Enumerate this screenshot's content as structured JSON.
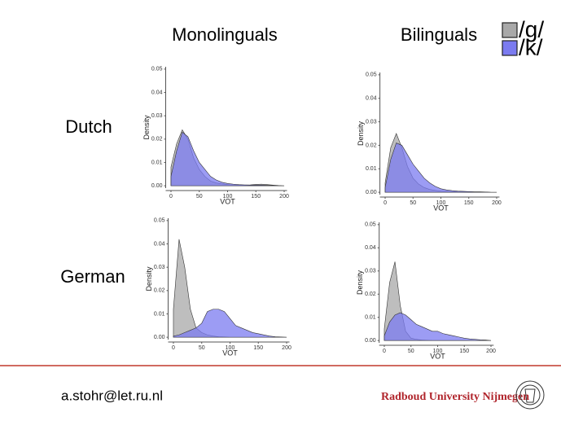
{
  "slide": {
    "columns": [
      "Monolinguals",
      "Bilinguals"
    ],
    "rows": [
      "Dutch",
      "German"
    ],
    "email": "a.stohr@let.ru.nl",
    "institution": "Radboud University Nijmegen"
  },
  "chart_data": [
    {
      "type": "area",
      "xlabel": "VOT",
      "ylabel": "Density",
      "xlim": [
        -5,
        205
      ],
      "ylim": [
        -0.001,
        0.051
      ],
      "xticks": [
        0,
        50,
        100,
        150,
        200
      ],
      "yticks": [
        {
          "value": 0,
          "label": "0.00"
        },
        {
          "value": 0.01,
          "label": "0.01"
        },
        {
          "value": 0.02,
          "label": "0.02"
        },
        {
          "value": 0.03,
          "label": "0.03"
        },
        {
          "value": 0.04,
          "label": "0.04"
        },
        {
          "value": 0.05,
          "label": "0.05"
        }
      ],
      "x": [
        0,
        10,
        20,
        30,
        40,
        50,
        60,
        70,
        80,
        90,
        100,
        110,
        120,
        130,
        140,
        150,
        160,
        170,
        180,
        190,
        200
      ],
      "series": [
        {
          "name": "/g/",
          "color": "#a8a8a8",
          "values": [
            0.008,
            0.018,
            0.024,
            0.02,
            0.012,
            0.007,
            0.004,
            0.002,
            0.0012,
            0.0008,
            0.0005,
            0.0004,
            0.0003,
            0.0003,
            0.0004,
            0.0006,
            0.0007,
            0.0005,
            0.0003,
            0.0001,
            0
          ]
        },
        {
          "name": "/k/",
          "color": "#7b7bf0",
          "values": [
            0.004,
            0.015,
            0.023,
            0.021,
            0.015,
            0.01,
            0.007,
            0.004,
            0.0025,
            0.0015,
            0.001,
            0.0007,
            0.0005,
            0.0004,
            0.0003,
            0.0003,
            0.0003,
            0.0002,
            0.0001,
            0,
            0
          ]
        }
      ]
    },
    {
      "type": "area",
      "xlabel": "VOT",
      "ylabel": "Density",
      "xlim": [
        -5,
        205
      ],
      "ylim": [
        -0.001,
        0.051
      ],
      "xticks": [
        0,
        50,
        100,
        150,
        200
      ],
      "yticks": [
        {
          "value": 0,
          "label": "0.00"
        },
        {
          "value": 0.01,
          "label": "0.01"
        },
        {
          "value": 0.02,
          "label": "0.02"
        },
        {
          "value": 0.03,
          "label": "0.03"
        },
        {
          "value": 0.04,
          "label": "0.04"
        },
        {
          "value": 0.05,
          "label": "0.05"
        }
      ],
      "x": [
        0,
        10,
        20,
        30,
        40,
        50,
        60,
        70,
        80,
        90,
        100,
        110,
        120,
        130,
        140,
        150,
        160,
        170,
        180,
        190,
        200
      ],
      "series": [
        {
          "name": "/g/",
          "color": "#a8a8a8",
          "values": [
            0.004,
            0.019,
            0.025,
            0.019,
            0.011,
            0.006,
            0.0035,
            0.002,
            0.0012,
            0.0008,
            0.0005,
            0.0004,
            0.0003,
            0.0003,
            0.0002,
            0.0002,
            0.0001,
            0.0001,
            0.0001,
            0,
            0
          ]
        },
        {
          "name": "/k/",
          "color": "#7b7bf0",
          "values": [
            0.002,
            0.014,
            0.021,
            0.02,
            0.016,
            0.012,
            0.009,
            0.006,
            0.004,
            0.0025,
            0.0015,
            0.001,
            0.0007,
            0.0005,
            0.0004,
            0.0003,
            0.0002,
            0.0002,
            0.0001,
            0,
            0
          ]
        }
      ]
    },
    {
      "type": "area",
      "xlabel": "VOT",
      "ylabel": "Density",
      "xlim": [
        -5,
        205
      ],
      "ylim": [
        -0.001,
        0.051
      ],
      "xticks": [
        0,
        50,
        100,
        150,
        200
      ],
      "yticks": [
        {
          "value": 0,
          "label": "0.00"
        },
        {
          "value": 0.01,
          "label": "0.01"
        },
        {
          "value": 0.02,
          "label": "0.02"
        },
        {
          "value": 0.03,
          "label": "0.03"
        },
        {
          "value": 0.04,
          "label": "0.04"
        },
        {
          "value": 0.05,
          "label": "0.05"
        }
      ],
      "x": [
        0,
        10,
        20,
        30,
        40,
        50,
        60,
        70,
        80,
        90,
        100,
        110,
        120,
        130,
        140,
        150,
        160,
        170,
        180,
        190,
        200
      ],
      "series": [
        {
          "name": "/g/",
          "color": "#a8a8a8",
          "values": [
            0.012,
            0.042,
            0.03,
            0.012,
            0.004,
            0.002,
            0.001,
            0.0005,
            0.0002,
            0.0001,
            0,
            0,
            0,
            0,
            0,
            0,
            0,
            0,
            0,
            0,
            0
          ]
        },
        {
          "name": "/k/",
          "color": "#7b7bf0",
          "values": [
            0.0005,
            0.001,
            0.002,
            0.003,
            0.004,
            0.006,
            0.011,
            0.012,
            0.012,
            0.011,
            0.008,
            0.005,
            0.004,
            0.003,
            0.002,
            0.0015,
            0.001,
            0.0005,
            0.0002,
            0.0001,
            0
          ]
        }
      ]
    },
    {
      "type": "area",
      "xlabel": "VOT",
      "ylabel": "Density",
      "xlim": [
        -5,
        205
      ],
      "ylim": [
        -0.001,
        0.051
      ],
      "xticks": [
        0,
        50,
        100,
        150,
        200
      ],
      "yticks": [
        {
          "value": 0,
          "label": "0.00"
        },
        {
          "value": 0.01,
          "label": "0.01"
        },
        {
          "value": 0.02,
          "label": "0.02"
        },
        {
          "value": 0.03,
          "label": "0.03"
        },
        {
          "value": 0.04,
          "label": "0.04"
        },
        {
          "value": 0.05,
          "label": "0.05"
        }
      ],
      "x": [
        0,
        10,
        20,
        30,
        40,
        50,
        60,
        70,
        80,
        90,
        100,
        110,
        120,
        130,
        140,
        150,
        160,
        170,
        180,
        190,
        200
      ],
      "series": [
        {
          "name": "/g/",
          "color": "#a8a8a8",
          "values": [
            0.005,
            0.025,
            0.034,
            0.015,
            0.004,
            0.001,
            0.0005,
            0.0002,
            0.0001,
            0,
            0,
            0,
            0,
            0,
            0,
            0,
            0,
            0,
            0,
            0,
            0
          ]
        },
        {
          "name": "/k/",
          "color": "#7b7bf0",
          "values": [
            0.002,
            0.008,
            0.011,
            0.012,
            0.011,
            0.009,
            0.007,
            0.006,
            0.005,
            0.004,
            0.004,
            0.003,
            0.0025,
            0.002,
            0.0015,
            0.001,
            0.0007,
            0.0005,
            0.0003,
            0.0002,
            0
          ]
        }
      ]
    }
  ]
}
